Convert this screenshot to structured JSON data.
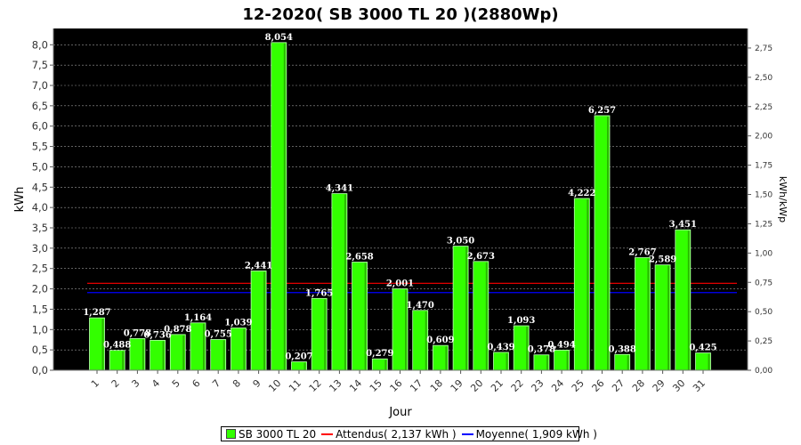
{
  "chart_data": {
    "type": "bar",
    "title": "12-2020( SB 3000 TL 20 )(2880Wp)",
    "xlabel": "Jour",
    "ylabel": "kWh",
    "ylabel_right": "kWh/kWp",
    "ylim": [
      0,
      8.4
    ],
    "ylim_right": [
      0,
      2.916666
    ],
    "yticks": [
      "0,0",
      "0,5",
      "1,0",
      "1,5",
      "2,0",
      "2,5",
      "3,0",
      "3,5",
      "4,0",
      "4,5",
      "5,0",
      "5,5",
      "6,0",
      "6,5",
      "7,0",
      "7,5",
      "8,0"
    ],
    "yticks_right": [
      "0,00",
      "0,25",
      "0,50",
      "0,75",
      "1,00",
      "1,25",
      "1,50",
      "1,75",
      "2,00",
      "2,25",
      "2,50",
      "2,75"
    ],
    "categories": [
      "1",
      "2",
      "3",
      "4",
      "5",
      "6",
      "7",
      "8",
      "9",
      "10",
      "11",
      "12",
      "13",
      "14",
      "15",
      "16",
      "17",
      "18",
      "19",
      "20",
      "21",
      "22",
      "23",
      "24",
      "25",
      "26",
      "27",
      "28",
      "29",
      "30",
      "31"
    ],
    "series": [
      {
        "name": "SB 3000 TL 20",
        "color": "#33ff00",
        "values": [
          1.287,
          0.488,
          0.778,
          0.736,
          0.878,
          1.164,
          0.755,
          1.039,
          2.441,
          8.054,
          0.207,
          1.765,
          4.341,
          2.658,
          0.279,
          2.001,
          1.47,
          0.609,
          3.05,
          2.673,
          0.439,
          1.093,
          0.378,
          0.494,
          4.222,
          6.257,
          0.388,
          2.767,
          2.589,
          3.451,
          0.425
        ],
        "labels": [
          "1,287",
          "0,488",
          "0,778",
          "0,736",
          "0,878",
          "1,164",
          "0,755",
          "1,039",
          "2,441",
          "8,054",
          "0,207",
          "1,765",
          "4,341",
          "2,658",
          "0,279",
          "2,001",
          "1,470",
          "0,609",
          "3,050",
          "2,673",
          "0,439",
          "1,093",
          "0,378",
          "0,494",
          "4,222",
          "6,257",
          "0,388",
          "2,767",
          "2,589",
          "3,451",
          "0,425"
        ]
      }
    ],
    "reference_lines": [
      {
        "name": "Attendus",
        "value": 2.137,
        "color": "#ff0000"
      },
      {
        "name": "Moyenne",
        "value": 1.909,
        "color": "#0000ff"
      }
    ],
    "background": "#000000",
    "grid": true,
    "legend_position": "bottom"
  },
  "legend": {
    "series_label": "SB 3000 TL 20",
    "attendus_label": "Attendus( 2,137 kWh )",
    "moyenne_label": "Moyenne( 1,909 kWh )"
  }
}
